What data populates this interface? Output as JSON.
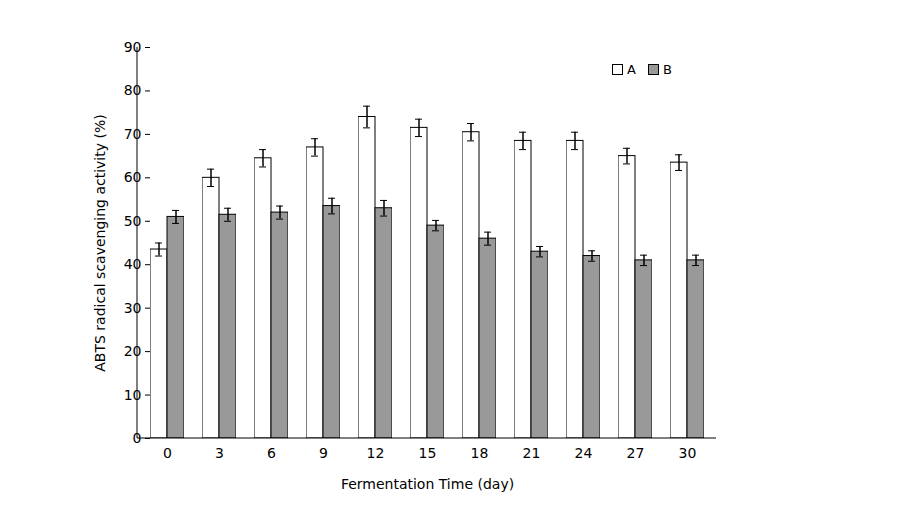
{
  "chart_data": {
    "type": "bar",
    "x_label": "Fermentation Time (day)",
    "y_label": "ABTS radical scavenging activity (%)",
    "categories": [
      0,
      3,
      6,
      9,
      12,
      15,
      18,
      21,
      24,
      27,
      30
    ],
    "series": [
      {
        "name": "A",
        "color": "#ffffff",
        "values": [
          43.5,
          60,
          64.5,
          67,
          74,
          71.5,
          70.5,
          68.5,
          68.5,
          65,
          63.5
        ],
        "errors": [
          1.5,
          2,
          2,
          2,
          2.5,
          2,
          2,
          2,
          2,
          1.8,
          1.8
        ]
      },
      {
        "name": "B",
        "color": "#999999",
        "values": [
          51,
          51.5,
          52,
          53.5,
          53,
          49,
          46,
          43,
          42,
          41,
          41
        ],
        "errors": [
          1.5,
          1.5,
          1.5,
          1.8,
          1.8,
          1.2,
          1.5,
          1.2,
          1.2,
          1.2,
          1.2
        ]
      }
    ],
    "ylim": [
      0,
      90
    ],
    "yticks": [
      0,
      10,
      20,
      30,
      40,
      50,
      60,
      70,
      80,
      90
    ],
    "legend": "top-right"
  }
}
